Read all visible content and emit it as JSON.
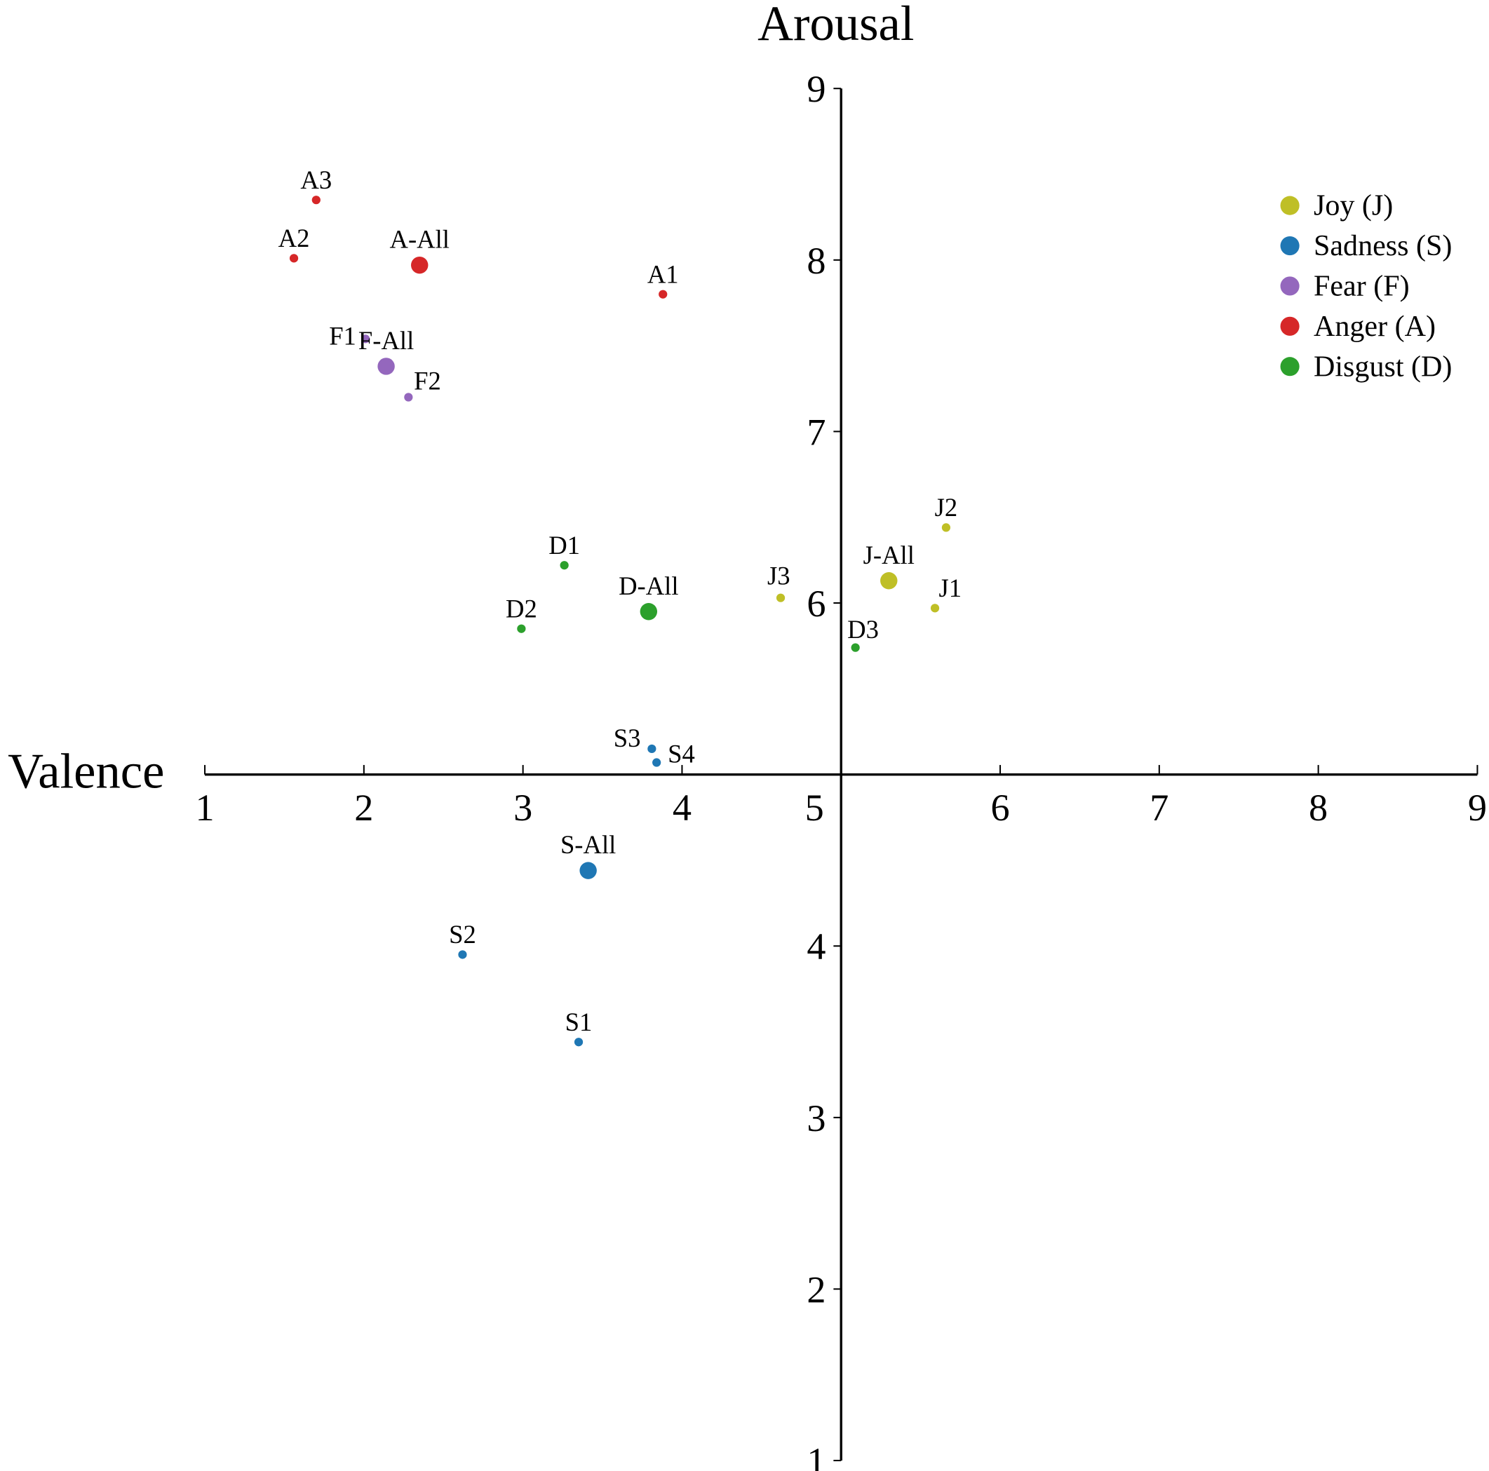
{
  "chart_data": {
    "type": "scatter",
    "title": "",
    "xlabel": "Valence",
    "ylabel": "Arousal",
    "xlim": [
      1,
      9
    ],
    "ylim": [
      1,
      9
    ],
    "xticks": [
      1,
      2,
      3,
      4,
      5,
      6,
      7,
      8,
      9
    ],
    "yticks": [
      1,
      2,
      3,
      4,
      5,
      6,
      7,
      8,
      9
    ],
    "x_axis_crosses_at": 5,
    "y_axis_crosses_at": 5,
    "grid": false,
    "legend_position": "top-right",
    "series": [
      {
        "name": "Joy (J)",
        "key": "J",
        "color": "#bfbf26",
        "points": [
          {
            "label": "J1",
            "x": 5.59,
            "y": 5.97,
            "size": "small"
          },
          {
            "label": "J2",
            "x": 5.66,
            "y": 6.44,
            "size": "small"
          },
          {
            "label": "J3",
            "x": 4.62,
            "y": 6.03,
            "size": "small"
          },
          {
            "label": "J-All",
            "x": 5.3,
            "y": 6.13,
            "size": "large"
          }
        ]
      },
      {
        "name": "Sadness (S)",
        "key": "S",
        "color": "#1f77b4",
        "points": [
          {
            "label": "S1",
            "x": 3.35,
            "y": 3.44,
            "size": "small"
          },
          {
            "label": "S2",
            "x": 2.62,
            "y": 3.95,
            "size": "small"
          },
          {
            "label": "S3",
            "x": 3.81,
            "y": 5.15,
            "size": "small"
          },
          {
            "label": "S4",
            "x": 3.84,
            "y": 5.07,
            "size": "small"
          },
          {
            "label": "S-All",
            "x": 3.41,
            "y": 4.44,
            "size": "large"
          }
        ]
      },
      {
        "name": "Fear (F)",
        "key": "F",
        "color": "#9467bd",
        "points": [
          {
            "label": "F1",
            "x": 2.01,
            "y": 7.54,
            "size": "small"
          },
          {
            "label": "F2",
            "x": 2.28,
            "y": 7.2,
            "size": "small"
          },
          {
            "label": "F-All",
            "x": 2.14,
            "y": 7.38,
            "size": "large"
          }
        ]
      },
      {
        "name": "Anger (A)",
        "key": "A",
        "color": "#d62728",
        "points": [
          {
            "label": "A1",
            "x": 3.88,
            "y": 7.8,
            "size": "small"
          },
          {
            "label": "A2",
            "x": 1.56,
            "y": 8.01,
            "size": "small"
          },
          {
            "label": "A3",
            "x": 1.7,
            "y": 8.35,
            "size": "small"
          },
          {
            "label": "A-All",
            "x": 2.35,
            "y": 7.97,
            "size": "large"
          }
        ]
      },
      {
        "name": "Disgust (D)",
        "key": "D",
        "color": "#2ca02c",
        "points": [
          {
            "label": "D1",
            "x": 3.26,
            "y": 6.22,
            "size": "small"
          },
          {
            "label": "D2",
            "x": 2.99,
            "y": 5.85,
            "size": "small"
          },
          {
            "label": "D3",
            "x": 5.09,
            "y": 5.74,
            "size": "small"
          },
          {
            "label": "D-All",
            "x": 3.79,
            "y": 5.95,
            "size": "large"
          }
        ]
      }
    ]
  }
}
